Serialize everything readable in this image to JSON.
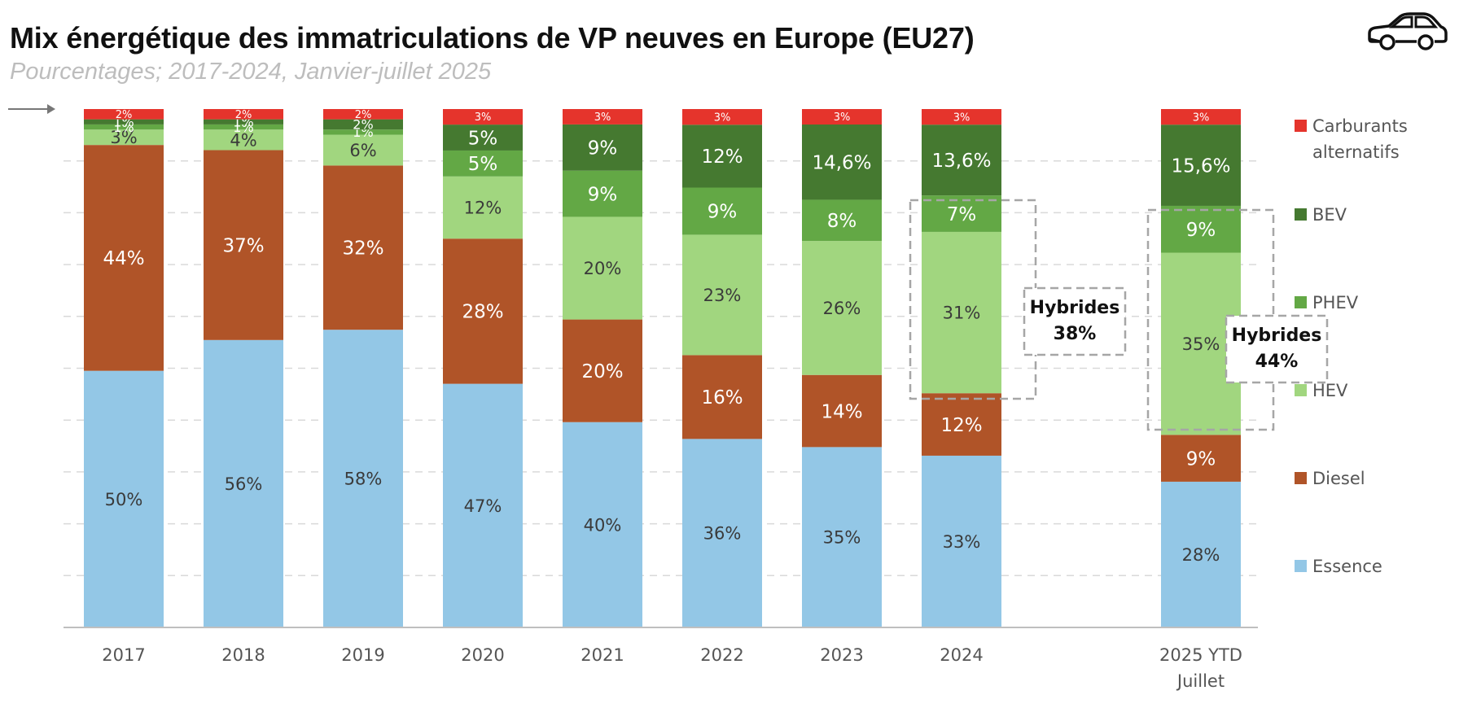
{
  "header": {
    "title": "Mix énergétique des immatriculations de VP neuves en Europe (EU27)",
    "subtitle": "Pourcentages; 2017-2024, Janvier-juillet 2025",
    "icon": "car-icon"
  },
  "colors": {
    "Essence": "#93c7e6",
    "Diesel": "#b05428",
    "HEV": "#a1d67f",
    "PHEV": "#63a845",
    "BEV": "#457930",
    "Carburants alternatifs": "#e5342c"
  },
  "chart_data": {
    "type": "bar",
    "stacked": true,
    "title": "Mix énergétique des immatriculations de VP neuves en Europe (EU27)",
    "subtitle": "Pourcentages; 2017-2024, Janvier-juillet 2025",
    "categories": [
      [
        "2017"
      ],
      [
        "2018"
      ],
      [
        "2019"
      ],
      [
        "2020"
      ],
      [
        "2021"
      ],
      [
        "2022"
      ],
      [
        "2023"
      ],
      [
        "2024"
      ],
      [
        "2025 YTD",
        "Juillet"
      ]
    ],
    "ylim": [
      0,
      100
    ],
    "legend_position": "right",
    "series": [
      {
        "name": "Essence",
        "values": [
          50,
          56,
          58,
          47,
          40,
          36,
          35,
          33,
          28
        ],
        "labels": [
          "50%",
          "56%",
          "58%",
          "47%",
          "40%",
          "36%",
          "35%",
          "33%",
          "28%"
        ]
      },
      {
        "name": "Diesel",
        "values": [
          44,
          37,
          32,
          28,
          20,
          16,
          14,
          12,
          9
        ],
        "labels": [
          "44%",
          "37%",
          "32%",
          "28%",
          "20%",
          "16%",
          "14%",
          "12%",
          "9%"
        ]
      },
      {
        "name": "HEV",
        "values": [
          3,
          4,
          6,
          12,
          20,
          23,
          26,
          31,
          35
        ],
        "labels": [
          "3%",
          "4%",
          "6%",
          "12%",
          "20%",
          "23%",
          "26%",
          "31%",
          "35%"
        ]
      },
      {
        "name": "PHEV",
        "values": [
          1,
          1,
          1,
          5,
          9,
          9,
          8,
          7,
          9
        ],
        "labels": [
          "1%",
          "1%",
          "1%",
          "5%",
          "9%",
          "9%",
          "8%",
          "7%",
          "9%"
        ]
      },
      {
        "name": "BEV",
        "values": [
          1,
          1,
          2,
          5,
          9,
          12,
          14.6,
          13.6,
          15.6
        ],
        "labels": [
          "1%",
          "1%",
          "2%",
          "5%",
          "9%",
          "12%",
          "14,6%",
          "13,6%",
          "15,6%"
        ]
      },
      {
        "name": "Carburants alternatifs",
        "values": [
          2,
          2,
          2,
          3,
          3,
          3,
          3,
          3,
          3
        ],
        "labels": [
          "2%",
          "2%",
          "2%",
          "3%",
          "3%",
          "3%",
          "3%",
          "3%",
          "3%"
        ]
      }
    ],
    "legend": [
      "Carburants alternatifs",
      "BEV",
      "PHEV",
      "HEV",
      "Diesel",
      "Essence"
    ],
    "annotations": [
      {
        "category_index": 7,
        "text": [
          "Hybrides",
          "38%"
        ],
        "groups": [
          "HEV",
          "PHEV"
        ]
      },
      {
        "category_index": 8,
        "text": [
          "Hybrides",
          "44%"
        ],
        "groups": [
          "HEV",
          "PHEV"
        ]
      }
    ]
  }
}
